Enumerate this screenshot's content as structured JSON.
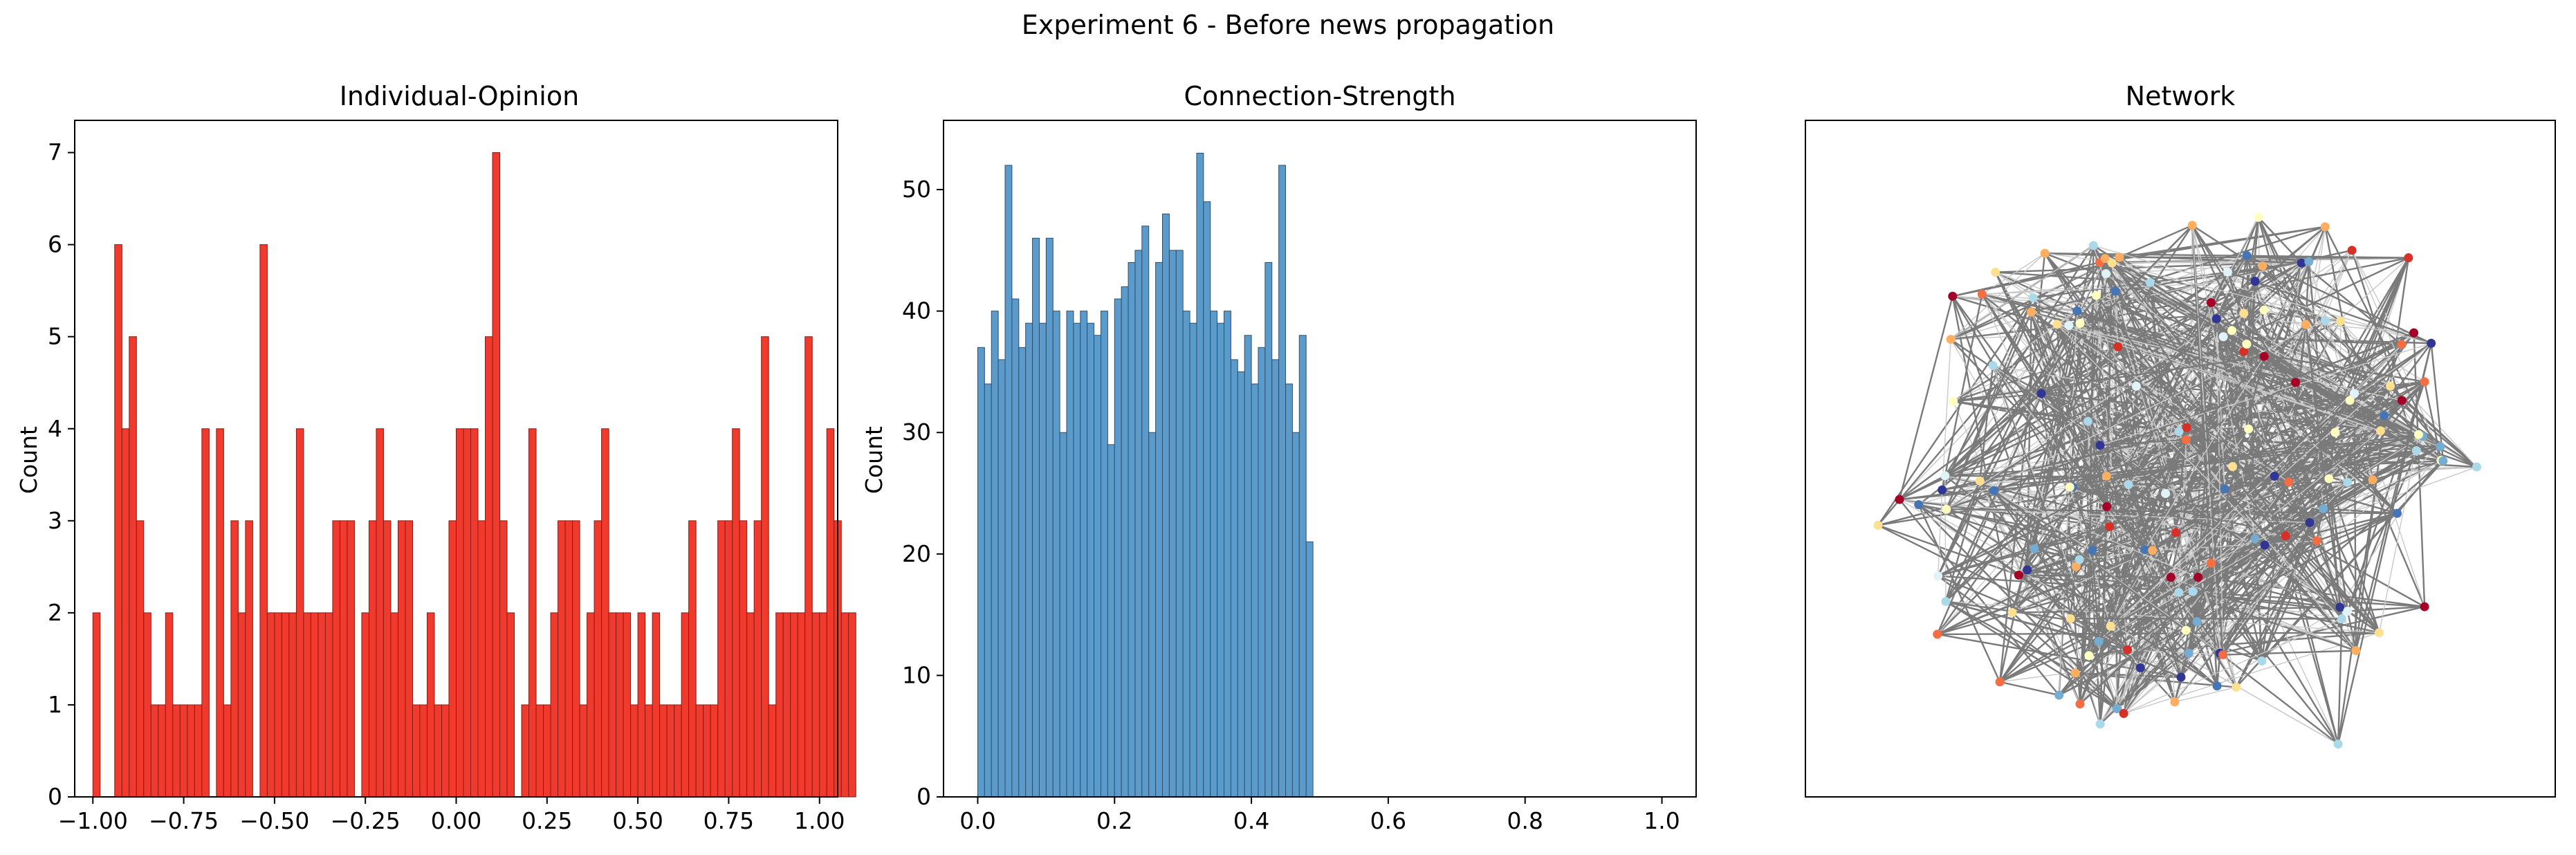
{
  "suptitle": "Experiment 6 - Before news propagation",
  "colors": {
    "opinion_bar": "#f03a2e",
    "opinion_edge": "#8b1a12",
    "strength_bar": "#5b9bcb",
    "strength_edge": "#2f4f6a",
    "edge": "#7a7a7a"
  },
  "chart_data": [
    {
      "type": "bar",
      "title": "Individual-Opinion",
      "xlabel": "",
      "ylabel": "Count",
      "xlim": [
        -1.05,
        1.05
      ],
      "ylim": [
        0,
        7.35
      ],
      "bin_start": -1.0,
      "bin_width": 0.02,
      "xticks": [
        -1.0,
        -0.75,
        -0.5,
        -0.25,
        0.0,
        0.25,
        0.5,
        0.75,
        1.0
      ],
      "xtick_labels": [
        "−1.00",
        "−0.75",
        "−0.50",
        "−0.25",
        "0.00",
        "0.25",
        "0.50",
        "0.75",
        "1.00"
      ],
      "yticks": [
        0,
        1,
        2,
        3,
        4,
        5,
        6,
        7
      ],
      "ytick_labels": [
        "0",
        "1",
        "2",
        "3",
        "4",
        "5",
        "6",
        "7"
      ],
      "values": [
        2,
        0,
        0,
        6,
        4,
        5,
        3,
        2,
        1,
        1,
        2,
        1,
        1,
        1,
        1,
        4,
        0,
        4,
        1,
        3,
        2,
        3,
        0,
        6,
        2,
        2,
        2,
        2,
        4,
        2,
        2,
        2,
        2,
        3,
        3,
        3,
        0,
        2,
        3,
        4,
        3,
        2,
        3,
        3,
        1,
        1,
        2,
        1,
        1,
        3,
        4,
        4,
        4,
        3,
        5,
        7,
        3,
        2,
        0,
        1,
        4,
        1,
        1,
        2,
        3,
        3,
        3,
        1,
        2,
        3,
        4,
        2,
        2,
        2,
        1,
        2,
        1,
        2,
        1,
        1,
        1,
        2,
        3,
        1,
        1,
        1,
        3,
        3,
        4,
        3,
        2,
        3,
        5,
        1,
        2,
        2,
        2,
        2,
        5,
        2,
        2,
        4,
        3,
        2,
        2
      ]
    },
    {
      "type": "bar",
      "title": "Connection-Strength",
      "xlabel": "",
      "ylabel": "Count",
      "xlim": [
        -0.05,
        1.05
      ],
      "ylim": [
        0,
        55.7
      ],
      "bin_start": 0.0,
      "bin_width": 0.01,
      "xticks": [
        0.0,
        0.2,
        0.4,
        0.6,
        0.8,
        1.0
      ],
      "xtick_labels": [
        "0.0",
        "0.2",
        "0.4",
        "0.6",
        "0.8",
        "1.0"
      ],
      "yticks": [
        0,
        10,
        20,
        30,
        40,
        50
      ],
      "ytick_labels": [
        "0",
        "10",
        "20",
        "30",
        "40",
        "50"
      ],
      "values": [
        37,
        34,
        40,
        36,
        52,
        41,
        37,
        39,
        46,
        39,
        46,
        40,
        30,
        40,
        39,
        40,
        39,
        38,
        40,
        29,
        41,
        42,
        44,
        45,
        47,
        30,
        44,
        48,
        45,
        45,
        40,
        39,
        53,
        49,
        40,
        39,
        40,
        36,
        35,
        38,
        34,
        37,
        44,
        36,
        52,
        34,
        30,
        38,
        21
      ]
    },
    {
      "type": "network",
      "title": "Network",
      "palette": [
        "#a50026",
        "#d73027",
        "#f46d43",
        "#fdae61",
        "#fee090",
        "#ffffbf",
        "#e0f3f8",
        "#abd9e9",
        "#74add1",
        "#4575b4",
        "#313695"
      ],
      "node_count": 150
    }
  ]
}
